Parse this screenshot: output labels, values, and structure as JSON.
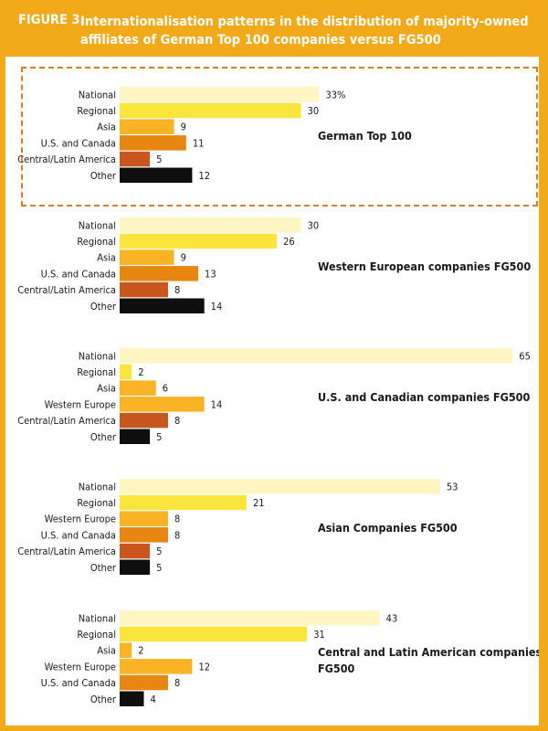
{
  "figure": {
    "label": "FIGURE  3.",
    "title": "Internationalisation patterns in the distribution of majority-owned affiliates of German Top 100 companies versus FG500"
  },
  "colors": {
    "page_bg": "#f2a91a",
    "panel_bg": "#ffffff",
    "dashed_border": "#e07b1f",
    "National": "#fdf6c3",
    "Regional": "#fae53c",
    "Asia": "#f9b324",
    "Western Europe": "#f9b324",
    "U.S. and Canada": "#e78610",
    "Central/Latin America": "#c8561d",
    "Other": "#0f0f0f"
  },
  "chart_data": [
    {
      "type": "bar",
      "orientation": "horizontal",
      "title": "German Top 100",
      "categories": [
        "National",
        "Regional",
        "Asia",
        "U.S. and Canada",
        "Central/Latin America",
        "Other"
      ],
      "values": [
        33,
        30,
        9,
        11,
        5,
        12
      ],
      "value_labels": [
        "33%",
        "30",
        "9",
        "11",
        "5",
        "12"
      ],
      "highlighted": true
    },
    {
      "type": "bar",
      "orientation": "horizontal",
      "title": "Western European companies FG500",
      "categories": [
        "National",
        "Regional",
        "Asia",
        "U.S. and Canada",
        "Central/Latin America",
        "Other"
      ],
      "values": [
        30,
        26,
        9,
        13,
        8,
        14
      ],
      "value_labels": [
        "30",
        "26",
        "9",
        "13",
        "8",
        "14"
      ]
    },
    {
      "type": "bar",
      "orientation": "horizontal",
      "title": "U.S. and Canadian companies FG500",
      "categories": [
        "National",
        "Regional",
        "Asia",
        "Western Europe",
        "Central/Latin America",
        "Other"
      ],
      "values": [
        65,
        2,
        6,
        14,
        8,
        5
      ],
      "value_labels": [
        "65",
        "2",
        "6",
        "14",
        "8",
        "5"
      ]
    },
    {
      "type": "bar",
      "orientation": "horizontal",
      "title": "Asian Companies FG500",
      "categories": [
        "National",
        "Regional",
        "Western Europe",
        "U.S. and Canada",
        "Central/Latin America",
        "Other"
      ],
      "values": [
        53,
        21,
        8,
        8,
        5,
        5
      ],
      "value_labels": [
        "53",
        "21",
        "8",
        "8",
        "5",
        "5"
      ]
    },
    {
      "type": "bar",
      "orientation": "horizontal",
      "title": [
        "Central and Latin American companies",
        "FG500"
      ],
      "categories": [
        "National",
        "Regional",
        "Asia",
        "Western Europe",
        "U.S. and Canada",
        "Other"
      ],
      "values": [
        43,
        31,
        2,
        12,
        8,
        4
      ],
      "value_labels": [
        "43",
        "31",
        "2",
        "12",
        "8",
        "4"
      ]
    }
  ]
}
